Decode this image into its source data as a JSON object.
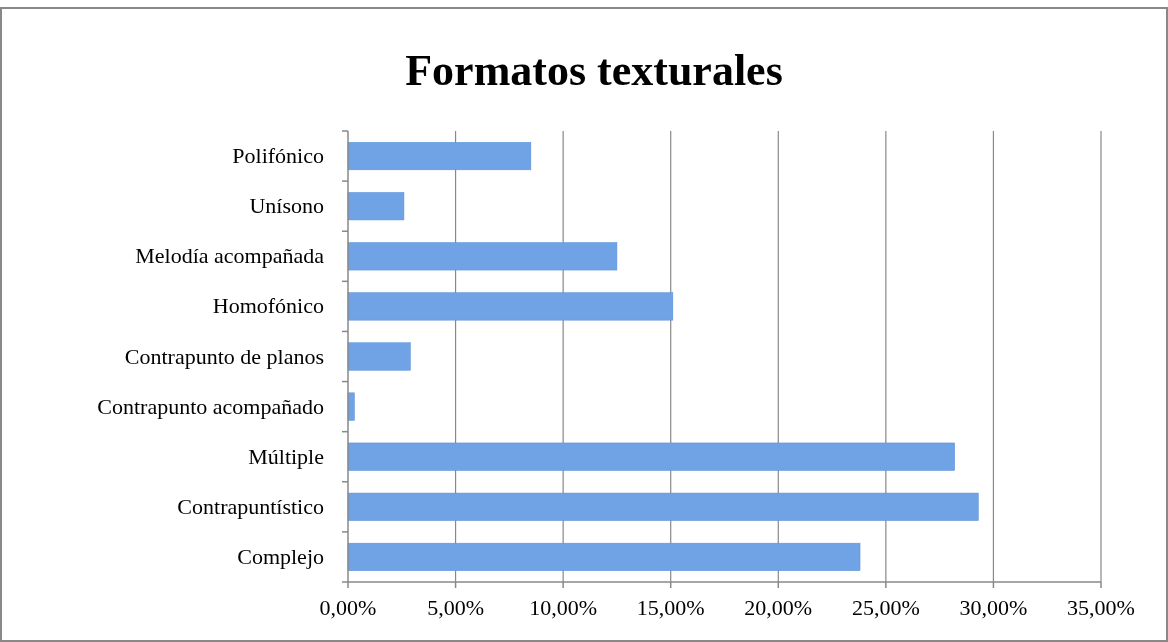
{
  "chart_data": {
    "type": "bar",
    "orientation": "horizontal",
    "title": "Formatos texturales",
    "categories": [
      "Polifónico",
      "Unísono",
      "Melodía acompañada",
      "Homofónico",
      "Contrapunto de planos",
      "Contrapunto acompañado",
      "Múltiple",
      "Contrapuntístico",
      "Complejo"
    ],
    "values": [
      8.5,
      2.6,
      12.5,
      15.1,
      2.9,
      0.3,
      28.2,
      29.3,
      23.8
    ],
    "color": "#6fa3e6",
    "xlim": [
      0,
      35
    ],
    "xticks": [
      {
        "value": 0,
        "label": "0,00%"
      },
      {
        "value": 5,
        "label": "5,00%"
      },
      {
        "value": 10,
        "label": "10,00%"
      },
      {
        "value": 15,
        "label": "15,00%"
      },
      {
        "value": 20,
        "label": "20,00%"
      },
      {
        "value": 25,
        "label": "25,00%"
      },
      {
        "value": 30,
        "label": "30,00%"
      },
      {
        "value": 35,
        "label": "35,00%"
      }
    ],
    "grid": "x"
  }
}
